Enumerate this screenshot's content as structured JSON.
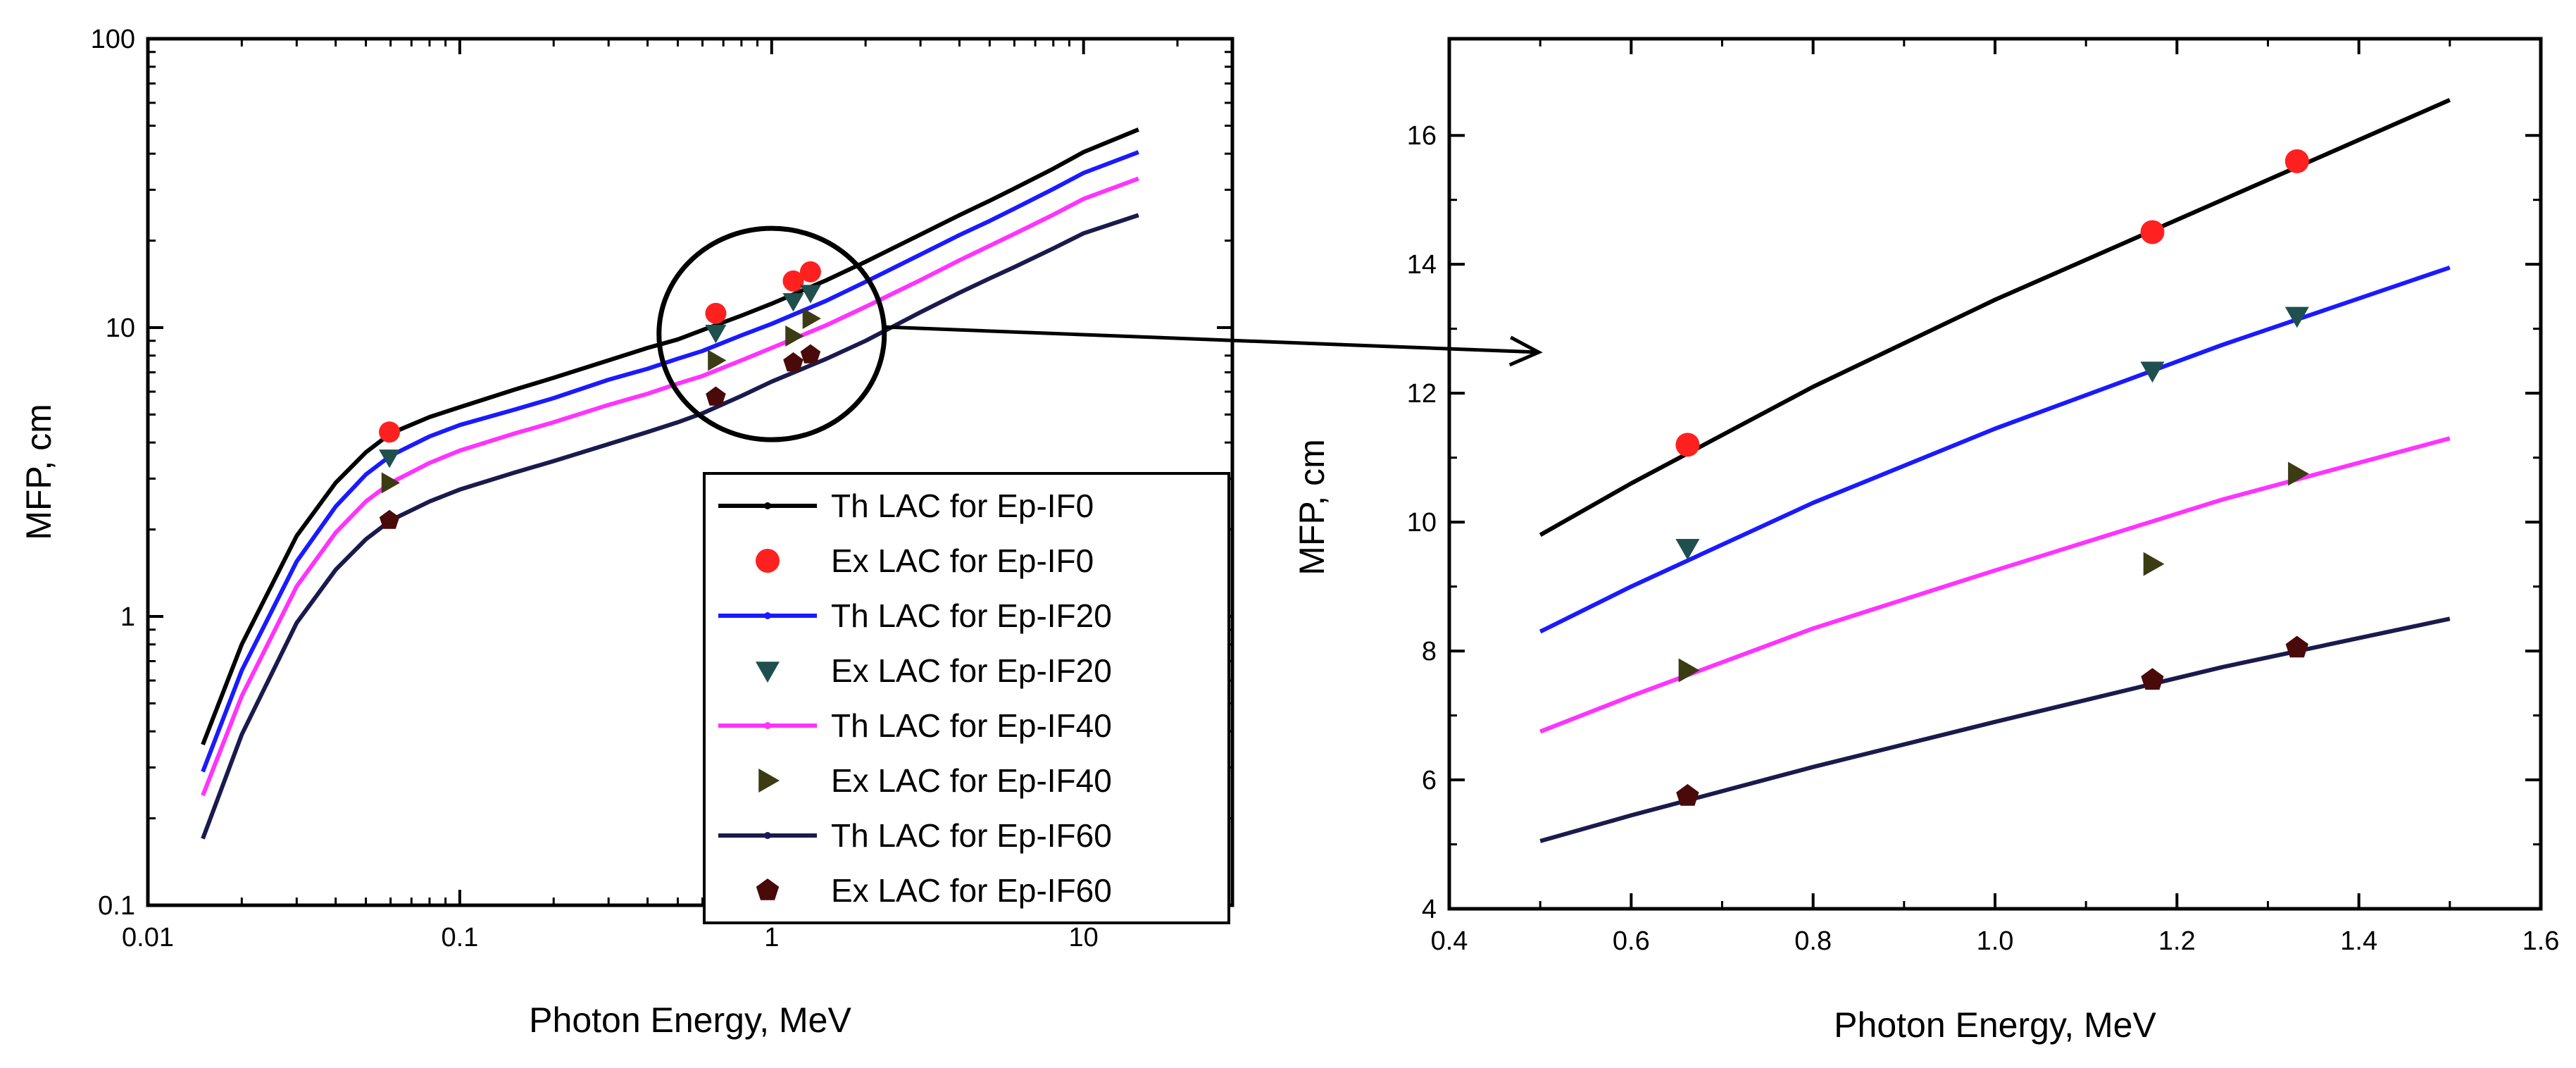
{
  "chart_data": [
    {
      "type": "line",
      "xlabel": "Photon Energy, MeV",
      "ylabel": "MFP, cm",
      "xscale": "log",
      "yscale": "log",
      "xlim": [
        0.01,
        30
      ],
      "ylim": [
        0.1,
        100
      ],
      "xticks": [
        0.01,
        0.1,
        1,
        10
      ],
      "xtick_labels": [
        "0.01",
        "0.1",
        "1",
        "10"
      ],
      "yticks": [
        0.1,
        1,
        10,
        100
      ],
      "ytick_labels": [
        "0.1",
        "1",
        "10",
        "100"
      ],
      "legend_position": "bottom-right",
      "annotation": "circle around 0.6–1.4 MeV region with arrow pointing to the zoomed chart",
      "series": [
        {
          "name": "Th LAC for Ep-IF0",
          "kind": "line",
          "color": "#000000",
          "x": [
            0.015,
            0.02,
            0.03,
            0.04,
            0.05,
            0.06,
            0.08,
            0.1,
            0.15,
            0.2,
            0.3,
            0.4,
            0.5,
            0.6,
            0.8,
            1,
            1.5,
            2,
            3,
            4,
            5,
            6,
            8,
            10,
            15
          ],
          "y": [
            0.36,
            0.8,
            1.9,
            2.9,
            3.7,
            4.3,
            4.9,
            5.3,
            6.1,
            6.7,
            7.7,
            8.5,
            9.1,
            9.8,
            11,
            12.1,
            14.6,
            16.9,
            21,
            24.5,
            27.5,
            30.3,
            35.5,
            40.5,
            48.5
          ]
        },
        {
          "name": "Ex LAC for Ep-IF0",
          "kind": "scatter",
          "marker": "circle",
          "color": "#ff2020",
          "x": [
            0.0595,
            0.662,
            1.173,
            1.332
          ],
          "y": [
            4.35,
            11.2,
            14.5,
            15.6
          ]
        },
        {
          "name": "Th LAC for Ep-IF20",
          "kind": "line",
          "color": "#1a1aff",
          "x": [
            0.015,
            0.02,
            0.03,
            0.04,
            0.05,
            0.06,
            0.08,
            0.1,
            0.15,
            0.2,
            0.3,
            0.4,
            0.5,
            0.6,
            0.8,
            1,
            1.5,
            2,
            3,
            4,
            5,
            6,
            8,
            10,
            15
          ],
          "y": [
            0.29,
            0.65,
            1.55,
            2.4,
            3.1,
            3.6,
            4.2,
            4.6,
            5.2,
            5.7,
            6.6,
            7.2,
            7.8,
            8.3,
            9.4,
            10.3,
            12.4,
            14.4,
            17.9,
            20.9,
            23.4,
            25.8,
            30.2,
            34.3,
            40.5
          ]
        },
        {
          "name": "Ex LAC for Ep-IF20",
          "kind": "scatter",
          "marker": "triangle-down",
          "color": "#1f4f4f",
          "x": [
            0.0595,
            0.662,
            1.173,
            1.332
          ],
          "y": [
            3.55,
            9.6,
            12.35,
            13.2
          ]
        },
        {
          "name": "Th LAC for Ep-IF40",
          "kind": "line",
          "color": "#ff33ff",
          "x": [
            0.015,
            0.02,
            0.03,
            0.04,
            0.05,
            0.06,
            0.08,
            0.1,
            0.15,
            0.2,
            0.3,
            0.4,
            0.5,
            0.6,
            0.8,
            1,
            1.5,
            2,
            3,
            4,
            5,
            6,
            8,
            10,
            15
          ],
          "y": [
            0.24,
            0.53,
            1.27,
            1.95,
            2.5,
            2.9,
            3.4,
            3.75,
            4.3,
            4.7,
            5.4,
            5.9,
            6.4,
            6.8,
            7.7,
            8.5,
            10.2,
            11.8,
            14.6,
            17.1,
            19.2,
            21.1,
            24.6,
            27.9,
            32.8
          ]
        },
        {
          "name": "Ex LAC for Ep-IF40",
          "kind": "scatter",
          "marker": "triangle-right",
          "color": "#3b3b14",
          "x": [
            0.0595,
            0.662,
            1.173,
            1.332
          ],
          "y": [
            2.9,
            7.7,
            9.35,
            10.75
          ]
        },
        {
          "name": "Th LAC for Ep-IF60",
          "kind": "line",
          "color": "#1a1a4d",
          "x": [
            0.015,
            0.02,
            0.03,
            0.04,
            0.05,
            0.06,
            0.08,
            0.1,
            0.15,
            0.2,
            0.3,
            0.4,
            0.5,
            0.6,
            0.8,
            1,
            1.5,
            2,
            3,
            4,
            5,
            6,
            8,
            10,
            15
          ],
          "y": [
            0.17,
            0.39,
            0.95,
            1.45,
            1.85,
            2.15,
            2.5,
            2.75,
            3.15,
            3.45,
            3.95,
            4.35,
            4.7,
            5.05,
            5.8,
            6.5,
            7.8,
            9.0,
            11.3,
            13.2,
            14.8,
            16.2,
            18.8,
            21.2,
            24.5
          ]
        },
        {
          "name": "Ex LAC for Ep-IF60",
          "kind": "scatter",
          "marker": "pentagon",
          "color": "#4a0a0a",
          "x": [
            0.0595,
            0.662,
            1.173,
            1.332
          ],
          "y": [
            2.15,
            5.75,
            7.55,
            8.05
          ]
        }
      ]
    },
    {
      "type": "line",
      "xlabel": "Photon Energy, MeV",
      "ylabel": "MFP, cm",
      "xlim": [
        0.4,
        1.6
      ],
      "ylim": [
        4,
        17.5
      ],
      "xticks": [
        0.4,
        0.6,
        0.8,
        1.0,
        1.2,
        1.4,
        1.6
      ],
      "xtick_labels": [
        "0.4",
        "0.6",
        "0.8",
        "1.0",
        "1.2",
        "1.4",
        "1.6"
      ],
      "yticks": [
        4,
        6,
        8,
        10,
        12,
        14,
        16
      ],
      "ytick_labels": [
        "4",
        "6",
        "8",
        "10",
        "12",
        "14",
        "16"
      ],
      "series": [
        {
          "name": "Th LAC for Ep-IF0",
          "kind": "line",
          "color": "#000000",
          "x": [
            0.5,
            0.6,
            0.8,
            1.0,
            1.25,
            1.5
          ],
          "y": [
            9.8,
            10.6,
            12.1,
            13.45,
            15.0,
            16.55
          ]
        },
        {
          "name": "Ex LAC for Ep-IF0",
          "kind": "scatter",
          "marker": "circle",
          "color": "#ff2020",
          "x": [
            0.662,
            1.173,
            1.332
          ],
          "y": [
            11.2,
            14.5,
            15.6
          ]
        },
        {
          "name": "Th LAC for Ep-IF20",
          "kind": "line",
          "color": "#1a1aff",
          "x": [
            0.5,
            0.6,
            0.8,
            1.0,
            1.25,
            1.5
          ],
          "y": [
            8.3,
            9.0,
            10.3,
            11.45,
            12.75,
            13.95
          ]
        },
        {
          "name": "Ex LAC for Ep-IF20",
          "kind": "scatter",
          "marker": "triangle-down",
          "color": "#1f4f4f",
          "x": [
            0.662,
            1.173,
            1.332
          ],
          "y": [
            9.6,
            12.35,
            13.2
          ]
        },
        {
          "name": "Th LAC for Ep-IF40",
          "kind": "line",
          "color": "#ff33ff",
          "x": [
            0.5,
            0.6,
            0.8,
            1.0,
            1.25,
            1.5
          ],
          "y": [
            6.75,
            7.3,
            8.35,
            9.25,
            10.35,
            11.3
          ]
        },
        {
          "name": "Ex LAC for Ep-IF40",
          "kind": "scatter",
          "marker": "triangle-right",
          "color": "#3b3b14",
          "x": [
            0.662,
            1.173,
            1.332
          ],
          "y": [
            7.7,
            9.35,
            10.75
          ]
        },
        {
          "name": "Th LAC for Ep-IF60",
          "kind": "line",
          "color": "#1a1a4d",
          "x": [
            0.5,
            0.6,
            0.8,
            1.0,
            1.25,
            1.5
          ],
          "y": [
            5.05,
            5.45,
            6.2,
            6.9,
            7.75,
            8.5
          ]
        },
        {
          "name": "Ex LAC for Ep-IF60",
          "kind": "scatter",
          "marker": "pentagon",
          "color": "#4a0a0a",
          "x": [
            0.662,
            1.173,
            1.332
          ],
          "y": [
            5.75,
            7.55,
            8.05
          ]
        }
      ]
    }
  ]
}
